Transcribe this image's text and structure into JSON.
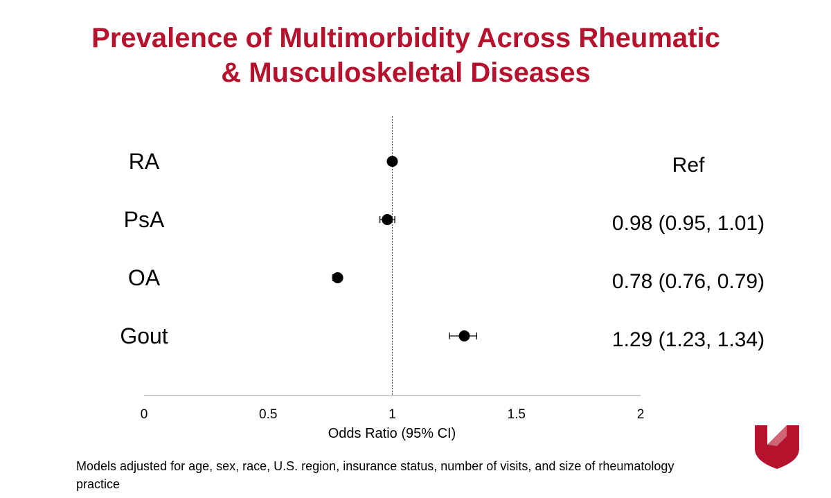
{
  "slide": {
    "title_line1": "Prevalence of Multimorbidity Across Rheumatic",
    "title_line2": "& Musculoskeletal Diseases",
    "footnote": "Models adjusted for age, sex, race, U.S. region, insurance status, number of visits, and size of rheumatology practice",
    "logo_icon": "university-n-shield-logo"
  },
  "colors": {
    "title": "#b5122e",
    "logo": "#b5122e",
    "points": "#000000",
    "ref_line": "#555555"
  },
  "chart_data": {
    "type": "scatter",
    "subtype": "forest-plot",
    "xlabel": "Odds Ratio (95% CI)",
    "xlim": [
      0,
      2
    ],
    "xticks": [
      0,
      0.5,
      1,
      1.5,
      2
    ],
    "xtick_labels": [
      "0",
      "0.5",
      "1",
      "1.5",
      "2"
    ],
    "reference_line": 1,
    "reference_line_style": "dotted",
    "grid": false,
    "categories": [
      "RA",
      "PsA",
      "OA",
      "Gout"
    ],
    "points": [
      {
        "label": "RA",
        "or": 1.0,
        "lower": null,
        "upper": null,
        "text": "Ref"
      },
      {
        "label": "PsA",
        "or": 0.98,
        "lower": 0.95,
        "upper": 1.01,
        "text": "0.98 (0.95, 1.01)"
      },
      {
        "label": "OA",
        "or": 0.78,
        "lower": 0.76,
        "upper": 0.79,
        "text": "0.78 (0.76, 0.79)"
      },
      {
        "label": "Gout",
        "or": 1.29,
        "lower": 1.23,
        "upper": 1.34,
        "text": "1.29 (1.23, 1.34)"
      }
    ]
  }
}
